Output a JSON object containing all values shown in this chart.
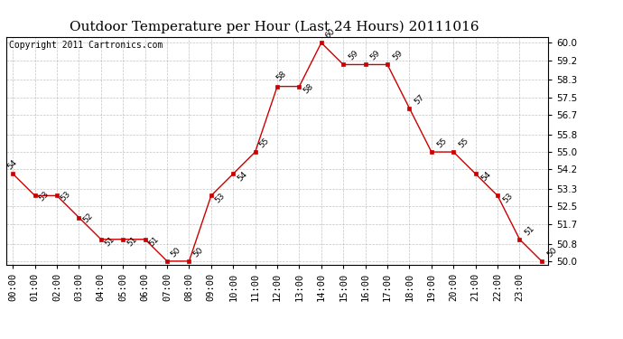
{
  "title": "Outdoor Temperature per Hour (Last 24 Hours) 20111016",
  "copyright": "Copyright 2011 Cartronics.com",
  "hours": [
    "00:00",
    "01:00",
    "02:00",
    "03:00",
    "04:00",
    "05:00",
    "06:00",
    "07:00",
    "08:00",
    "09:00",
    "10:00",
    "11:00",
    "12:00",
    "13:00",
    "14:00",
    "15:00",
    "16:00",
    "17:00",
    "18:00",
    "19:00",
    "20:00",
    "21:00",
    "22:00",
    "23:00"
  ],
  "temps": [
    54,
    53,
    53,
    52,
    51,
    51,
    51,
    50,
    50,
    53,
    54,
    55,
    58,
    58,
    60,
    59,
    59,
    59,
    57,
    55,
    55,
    54,
    53,
    51,
    50
  ],
  "ylim_min": 49.85,
  "ylim_max": 60.25,
  "yticks": [
    50.0,
    50.8,
    51.7,
    52.5,
    53.3,
    54.2,
    55.0,
    55.8,
    56.7,
    57.5,
    58.3,
    59.2,
    60.0
  ],
  "line_color": "#cc0000",
  "bg_color": "#ffffff",
  "grid_color": "#aaaaaa",
  "title_fontsize": 11,
  "copyright_fontsize": 7,
  "label_fontsize": 6.5,
  "tick_fontsize": 7.5
}
